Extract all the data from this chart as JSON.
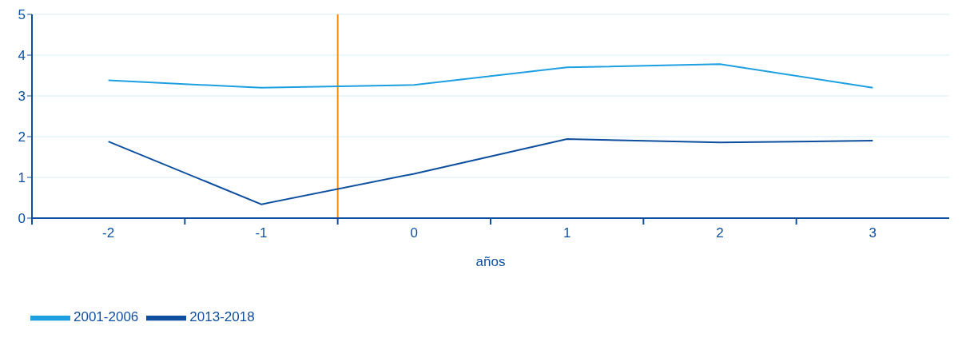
{
  "chart_data": {
    "type": "line",
    "xlabel": "años",
    "x": [
      -2,
      -1,
      0,
      1,
      2,
      3
    ],
    "xlim": [
      -2.5,
      3.5
    ],
    "xticks": [
      {
        "value": -2.5,
        "label": null
      },
      -2,
      {
        "value": -1.5,
        "label": null
      },
      -1,
      {
        "value": -0.5,
        "label": null
      },
      0,
      {
        "value": 0.5,
        "label": null
      },
      1,
      {
        "value": 1.5,
        "label": null
      },
      2,
      {
        "value": 2.5,
        "label": null
      },
      3
    ],
    "ylim": [
      0,
      5
    ],
    "yticks": [
      0,
      1,
      2,
      3,
      4,
      5
    ],
    "grid": "y",
    "legend": "bottom left",
    "marker": "none",
    "line_style": "solid",
    "series": [
      {
        "name": "2001-2006",
        "color": "#1ea0e0",
        "values": [
          3.38,
          3.2,
          3.27,
          3.7,
          3.78,
          3.2
        ]
      },
      {
        "name": "2013-2018",
        "color": "#0d4f9e",
        "values": [
          1.88,
          0.34,
          1.09,
          1.94,
          1.86,
          1.9
        ]
      }
    ],
    "ref_lines": [
      {
        "axis": "x",
        "value": -0.5,
        "label": null,
        "color": "#f39200"
      }
    ]
  }
}
